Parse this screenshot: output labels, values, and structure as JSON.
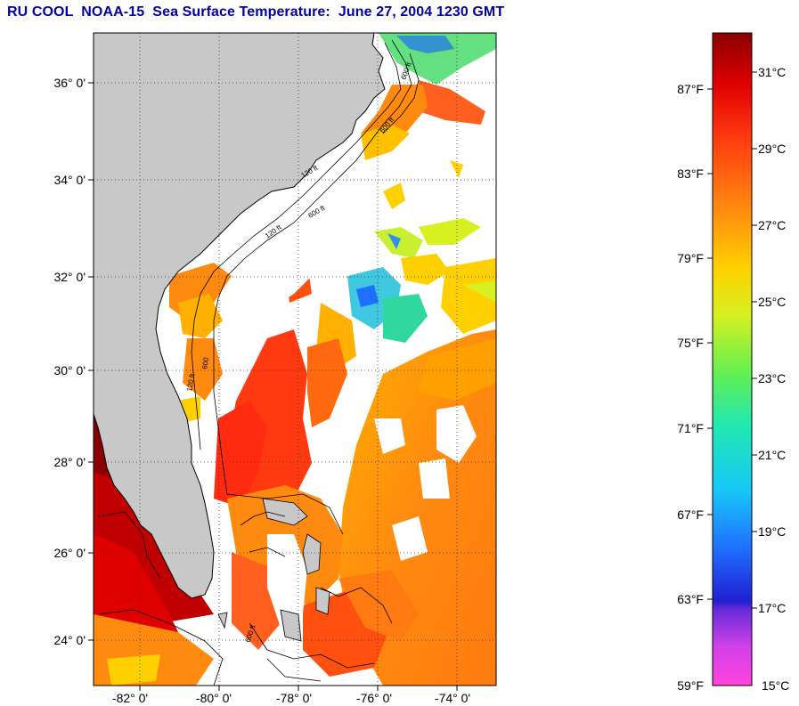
{
  "title": "RU COOL  NOAA-15  Sea Surface Temperature:  June 27, 2004 1230 GMT",
  "map": {
    "lat_labels": [
      "36° 0'",
      "34° 0'",
      "32° 0'",
      "30° 0'",
      "28° 0'",
      "26° 0'",
      "24° 0'"
    ],
    "lon_labels": [
      "-82° 0'",
      "-80° 0'",
      "-78° 0'",
      "-76° 0'",
      "-74° 0'"
    ],
    "contour_labels": [
      "120 ft",
      "600 ft",
      "120 ft",
      "600 ft",
      "600 ft",
      "600",
      "120 ft",
      "600 ft"
    ],
    "land_color": "#c8c8c8",
    "cloud_color": "#ffffff"
  },
  "colorbar": {
    "fahrenheit_labels": [
      "87°F",
      "83°F",
      "79°F",
      "75°F",
      "71°F",
      "67°F",
      "63°F",
      "59°F"
    ],
    "celsius_labels": [
      "31°C",
      "29°C",
      "27°C",
      "25°C",
      "23°C",
      "21°C",
      "19°C",
      "17°C",
      "15°C"
    ],
    "range_c": [
      15,
      32
    ],
    "colors": [
      "#ff44dd",
      "#8a38e0",
      "#2020d0",
      "#1f6fff",
      "#18d0f0",
      "#22e8a8",
      "#64f050",
      "#d8f020",
      "#ffd000",
      "#ff8a10",
      "#ff3a10",
      "#e00000",
      "#8a0000"
    ]
  }
}
